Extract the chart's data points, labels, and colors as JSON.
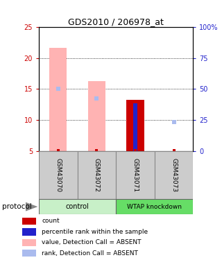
{
  "title": "GDS2010 / 206978_at",
  "samples": [
    "GSM43070",
    "GSM43072",
    "GSM43071",
    "GSM43073"
  ],
  "ylim_left": [
    5,
    25
  ],
  "ylim_right": [
    0,
    100
  ],
  "yticks_left": [
    5,
    10,
    15,
    20,
    25
  ],
  "yticks_right": [
    0,
    25,
    50,
    75,
    100
  ],
  "ytick_labels_right": [
    "0",
    "25",
    "50",
    "75",
    "100%"
  ],
  "bar_width": 0.45,
  "value_absent": [
    21.7,
    16.3,
    null,
    null
  ],
  "rank_absent_dot": [
    15.0,
    13.5,
    null,
    null
  ],
  "value_present": [
    null,
    null,
    13.3,
    null
  ],
  "rank_present_bar": [
    null,
    null,
    12.7,
    null
  ],
  "count_dot": [
    5.1,
    5.1,
    5.1,
    5.1
  ],
  "rank_lone_dot": [
    null,
    null,
    null,
    9.7
  ],
  "count_color": "#CC0000",
  "rank_color": "#2222CC",
  "value_absent_color": "#FFB3B3",
  "rank_absent_dot_color": "#AABBEE",
  "left_tick_color": "#CC0000",
  "right_tick_color": "#2222CC",
  "legend_items": [
    {
      "color": "#CC0000",
      "label": "count"
    },
    {
      "color": "#2222CC",
      "label": "percentile rank within the sample"
    },
    {
      "color": "#FFB3B3",
      "label": "value, Detection Call = ABSENT"
    },
    {
      "color": "#AABBEE",
      "label": "rank, Detection Call = ABSENT"
    }
  ],
  "group_label_control": "control",
  "group_label_wtap": "WTAP knockdown",
  "protocol_label": "protocol",
  "control_color_light": "#C8F0C8",
  "control_color": "#C8F0C8",
  "wtap_color": "#66DD66",
  "sample_box_color": "#CCCCCC",
  "sample_box_edge": "#888888"
}
